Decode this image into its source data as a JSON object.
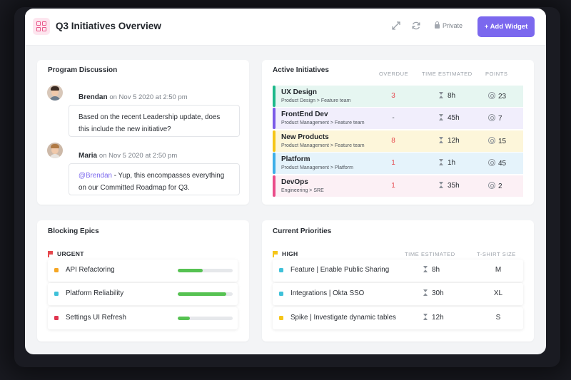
{
  "header": {
    "title": "Q3 Initiatives Overview",
    "privacy_label": "Private",
    "add_widget_label": "+ Add Widget"
  },
  "colors": {
    "accent": "#7b68ee",
    "overdue": "#e5484d",
    "progress": "#56c252"
  },
  "discussion": {
    "title": "Program Discussion",
    "messages": [
      {
        "author": "Brendan",
        "meta": "on Nov 5 2020 at 2:50 pm",
        "line1": "Based on the recent Leadership update, does",
        "line2": "this include the new initiative?"
      },
      {
        "author": "Maria",
        "meta": "on Nov 5 2020 at 2:50 pm",
        "mention": "@Brendan",
        "line1_rest": " - Yup, this encompasses everything",
        "line2": "on our Committed Roadmap for Q3."
      }
    ]
  },
  "initiatives": {
    "title": "Active Initiatives",
    "columns": [
      "OVERDUE",
      "TIME ESTIMATED",
      "POINTS"
    ],
    "rows": [
      {
        "name": "UX Design",
        "path": "Product Design > Feature team",
        "overdue": "3",
        "time": "8h",
        "points": "23",
        "color": "#1db88a",
        "bg": "#e6f6f1"
      },
      {
        "name": "FrontEnd Dev",
        "path": "Product Management > Feature team",
        "overdue": "-",
        "time": "45h",
        "points": "7",
        "color": "#7b5be8",
        "bg": "#f1eefc"
      },
      {
        "name": "New Products",
        "path": "Product Management > Feature team",
        "overdue": "8",
        "time": "12h",
        "points": "15",
        "color": "#f5c518",
        "bg": "#fdf6da"
      },
      {
        "name": "Platform",
        "path": "Product Management > Platform",
        "overdue": "1",
        "time": "1h",
        "points": "45",
        "color": "#3eaee8",
        "bg": "#e5f3fb"
      },
      {
        "name": "DevOps",
        "path": "Engineering > SRE",
        "overdue": "1",
        "time": "35h",
        "points": "2",
        "color": "#ea4c89",
        "bg": "#fcf0f5"
      }
    ]
  },
  "blocking": {
    "title": "Blocking Epics",
    "group": "URGENT",
    "group_color": "#e5484d",
    "items": [
      {
        "name": "API Refactoring",
        "color": "#f5a623",
        "progress": 0.45
      },
      {
        "name": "Platform Reliability",
        "color": "#3fc1d9",
        "progress": 0.88
      },
      {
        "name": "Settings UI Refresh",
        "color": "#e03550",
        "progress": 0.22
      }
    ]
  },
  "priorities": {
    "title": "Current Priorities",
    "group": "HIGH",
    "group_color": "#f5c518",
    "columns": [
      "TIME ESTIMATED",
      "T-SHIRT SIZE"
    ],
    "items": [
      {
        "name": "Feature | Enable Public Sharing",
        "color": "#3fc1d9",
        "time": "8h",
        "size": "M"
      },
      {
        "name": "Integrations | Okta SSO",
        "color": "#3fc1d9",
        "time": "30h",
        "size": "XL"
      },
      {
        "name": "Spike | Investigate dynamic tables",
        "color": "#f5c518",
        "time": "12h",
        "size": "S"
      }
    ]
  }
}
